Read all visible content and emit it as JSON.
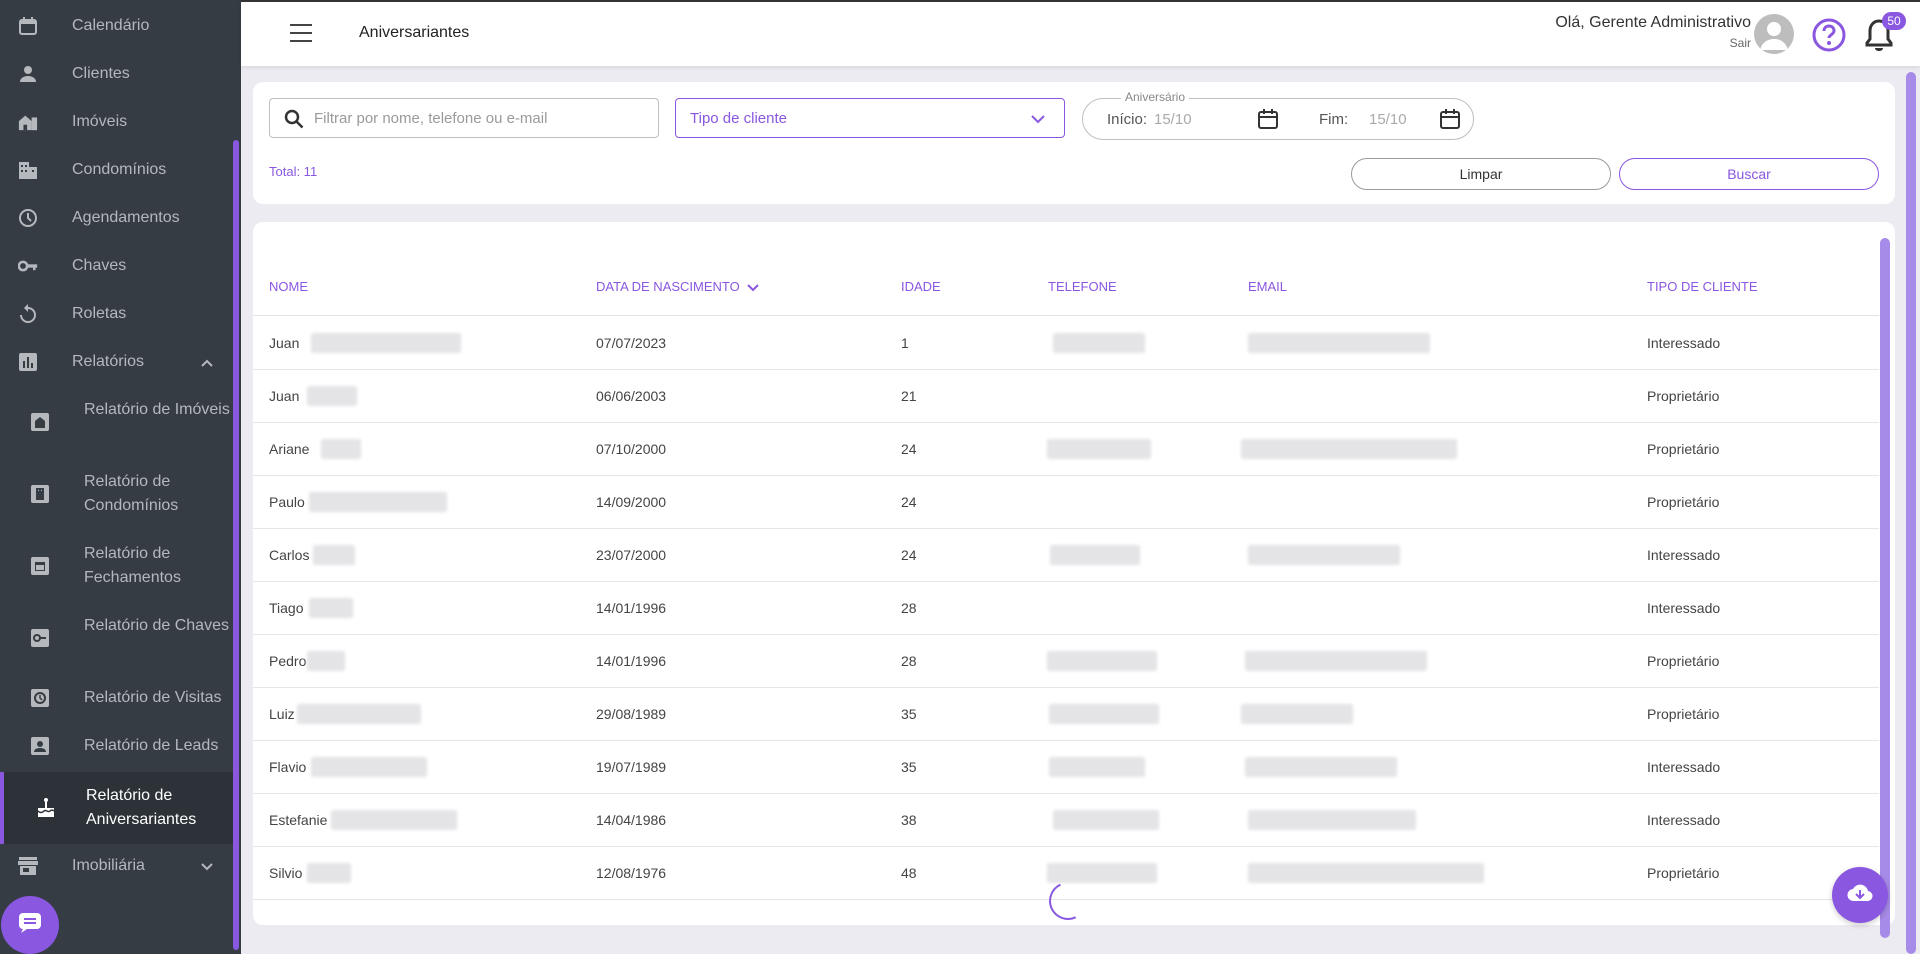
{
  "sidebar": {
    "items": [
      {
        "label": "Calendário",
        "icon": "calendar-icon"
      },
      {
        "label": "Clientes",
        "icon": "person-icon"
      },
      {
        "label": "Imóveis",
        "icon": "building-home-icon"
      },
      {
        "label": "Condomínios",
        "icon": "apartment-icon"
      },
      {
        "label": "Agendamentos",
        "icon": "clock-icon"
      },
      {
        "label": "Chaves",
        "icon": "key-icon"
      },
      {
        "label": "Roletas",
        "icon": "rotate-icon"
      },
      {
        "label": "Relatórios",
        "icon": "bar-chart-icon"
      }
    ],
    "sub_items": [
      {
        "label": "Relatório de Imóveis",
        "icon": "house-report-icon"
      },
      {
        "label": "Relatório de Condomínios",
        "icon": "building-report-icon"
      },
      {
        "label": "Relatório de Fechamentos",
        "icon": "calendar-report-icon"
      },
      {
        "label": "Relatório de Chaves",
        "icon": "key-report-icon"
      },
      {
        "label": "Relatório de Visitas",
        "icon": "visit-clock-icon"
      },
      {
        "label": "Relatório de Leads",
        "icon": "contact-card-icon"
      },
      {
        "label": "Relatório de Aniversariantes",
        "icon": "cake-icon"
      }
    ],
    "last_item": {
      "label": "Imobiliária",
      "icon": "store-icon"
    }
  },
  "header": {
    "title": "Aniversariantes",
    "greeting": "Olá, Gerente Administrativo",
    "logout": "Sair",
    "notifications": "50"
  },
  "filters": {
    "search_placeholder": "Filtrar por nome, telefone ou e-mail",
    "client_type": "Tipo de cliente",
    "birthday_legend": "Aniversário",
    "start_label": "Início:",
    "start_value": "15/10",
    "end_label": "Fim:",
    "end_value": "15/10",
    "total": "Total: 11",
    "clear": "Limpar",
    "search": "Buscar"
  },
  "table": {
    "columns": [
      "NOME",
      "DATA DE NASCIMENTO",
      "IDADE",
      "TELEFONE",
      "EMAIL",
      "TIPO DE CLIENTE"
    ],
    "rows": [
      {
        "name": "Juan",
        "birth": "07/07/2023",
        "age": "1",
        "type": "Interessado"
      },
      {
        "name": "Juan",
        "birth": "06/06/2003",
        "age": "21",
        "type": "Proprietário"
      },
      {
        "name": "Ariane",
        "birth": "07/10/2000",
        "age": "24",
        "type": "Proprietário"
      },
      {
        "name": "Paulo",
        "birth": "14/09/2000",
        "age": "24",
        "type": "Proprietário"
      },
      {
        "name": "Carlos",
        "birth": "23/07/2000",
        "age": "24",
        "type": "Interessado"
      },
      {
        "name": "Tiago",
        "birth": "14/01/1996",
        "age": "28",
        "type": "Interessado"
      },
      {
        "name": "Pedro",
        "birth": "14/01/1996",
        "age": "28",
        "type": "Proprietário"
      },
      {
        "name": "Luiz",
        "birth": "29/08/1989",
        "age": "35",
        "type": "Proprietário"
      },
      {
        "name": "Flavio",
        "birth": "19/07/1989",
        "age": "35",
        "type": "Interessado"
      },
      {
        "name": "Estefanie",
        "birth": "14/04/1986",
        "age": "38",
        "type": "Interessado"
      },
      {
        "name": "Silvio",
        "birth": "12/08/1976",
        "age": "48",
        "type": "Proprietário"
      }
    ]
  },
  "colors": {
    "accent": "#8957e0",
    "sidebar_bg": "#353c43",
    "page_bg": "#ecebf1"
  }
}
